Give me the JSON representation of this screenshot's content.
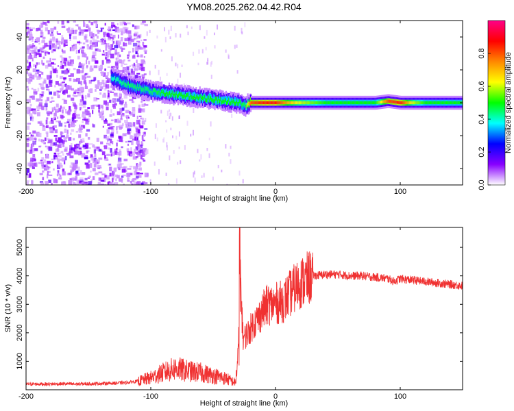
{
  "chart_data": [
    {
      "type": "heatmap",
      "title": "YM08.2025.262.04.42.R04",
      "xlabel": "Height of straight line (km)",
      "ylabel": "Frequency (Hz)",
      "xlim": [
        -200,
        150
      ],
      "ylim": [
        -50,
        50
      ],
      "x_ticks": [
        "-200",
        "-100",
        "0",
        "100"
      ],
      "y_ticks": [
        "-40",
        "-20",
        "0",
        "20",
        "40"
      ],
      "colorbar": {
        "label": "Normalized spectral amplitude",
        "range": [
          0.0,
          1.0
        ],
        "ticks": [
          "0.0",
          "0.2",
          "0.4",
          "0.6",
          "0.8"
        ],
        "colors": [
          "#ffffff",
          "#8800ff",
          "#0000ff",
          "#00ffff",
          "#00ff00",
          "#ffff00",
          "#ff8800",
          "#ff0000",
          "#ff0088"
        ]
      },
      "ridge": {
        "x": [
          -130,
          -120,
          -110,
          -100,
          -90,
          -80,
          -70,
          -60,
          -50,
          -40,
          -30,
          -25,
          -20,
          -10,
          0,
          10,
          20,
          40,
          60,
          80,
          90,
          100,
          110,
          120,
          140,
          150
        ],
        "y": [
          15,
          11,
          9,
          7,
          6,
          5,
          4,
          3,
          2,
          1,
          0,
          -2,
          0,
          0,
          0,
          0,
          0,
          0,
          0,
          0,
          1,
          0,
          0,
          0,
          0,
          0
        ],
        "amplitude": [
          0.4,
          0.45,
          0.45,
          0.45,
          0.5,
          0.5,
          0.5,
          0.5,
          0.5,
          0.5,
          0.5,
          0.45,
          0.8,
          0.85,
          0.85,
          0.7,
          0.6,
          0.5,
          0.5,
          0.5,
          0.8,
          0.85,
          0.6,
          0.5,
          0.5,
          0.5
        ]
      }
    },
    {
      "type": "line",
      "xlabel": "Height of straight line (km)",
      "ylabel": "SNR (10 * v/v)",
      "xlim": [
        -200,
        150
      ],
      "ylim": [
        0,
        5700
      ],
      "x_ticks": [
        "-200",
        "-100",
        "0",
        "100"
      ],
      "y_ticks": [
        "1000",
        "2000",
        "3000",
        "4000",
        "5000"
      ],
      "color": "#f03232",
      "series": [
        {
          "x": [
            -200,
            -190,
            -180,
            -170,
            -160,
            -150,
            -140,
            -130,
            -120,
            -110,
            -100,
            -90,
            -80,
            -70,
            -60,
            -50,
            -40,
            -32,
            -30,
            -28,
            -26,
            -22,
            -18,
            -14,
            -10,
            -6,
            -2,
            2,
            6,
            10,
            14,
            18,
            22,
            26,
            30,
            40,
            50,
            60,
            70,
            80,
            90,
            95,
            100,
            110,
            120,
            130,
            140,
            150
          ],
          "y": [
            200,
            200,
            200,
            210,
            200,
            210,
            220,
            230,
            250,
            300,
            420,
            600,
            750,
            650,
            600,
            500,
            400,
            250,
            1200,
            3800,
            1800,
            2000,
            2300,
            2500,
            2800,
            3000,
            3000,
            3050,
            3100,
            3300,
            3500,
            3700,
            3800,
            3900,
            4000,
            4050,
            4050,
            4000,
            4000,
            3950,
            3900,
            3800,
            3900,
            3850,
            3800,
            3750,
            3700,
            3650
          ]
        }
      ]
    }
  ]
}
